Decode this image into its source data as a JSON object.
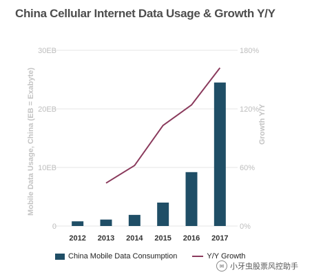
{
  "chart_data": {
    "type": "bar",
    "title": "China Cellular Internet Data Usage & Growth Y/Y",
    "categories": [
      "2012",
      "2013",
      "2014",
      "2015",
      "2016",
      "2017"
    ],
    "series": [
      {
        "name": "China Mobile Data Consumption",
        "type": "bar",
        "axis": "left",
        "values": [
          0.8,
          1.1,
          1.9,
          4.0,
          9.2,
          24.5
        ]
      },
      {
        "name": "Y/Y Growth",
        "type": "line",
        "axis": "right",
        "values": [
          null,
          44,
          62,
          103,
          124,
          162
        ]
      }
    ],
    "ylabel": "Mobile Data Usage, China (EB = Exabyte)",
    "ylabel_right": "Growth Y/Y",
    "ylim": [
      0,
      30
    ],
    "ylim_right": [
      0,
      180
    ],
    "yticks": [
      "0",
      "10EB",
      "20EB",
      "30EB"
    ],
    "yticks_right": [
      "0%",
      "60%",
      "120%",
      "180%"
    ],
    "legend_position": "bottom",
    "colors": {
      "bar": "#1f4e66",
      "line": "#8a3a5c"
    }
  },
  "watermark": "小牙虫股票风控助手"
}
